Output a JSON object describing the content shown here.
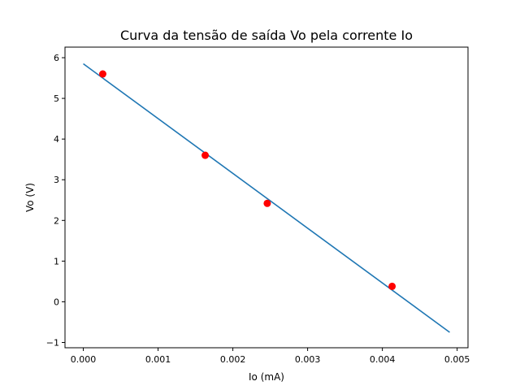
{
  "chart_data": {
    "type": "scatter",
    "title": "Curva da tensão de saída Vo pela corrente Io",
    "xlabel": "Io (mA)",
    "ylabel": "Vo (V)",
    "xlim": [
      -0.000245,
      0.005145
    ],
    "ylim": [
      -1.13,
      6.26
    ],
    "xticks": [
      0.0,
      0.001,
      0.002,
      0.003,
      0.004,
      0.005
    ],
    "xtick_labels": [
      "0.000",
      "0.001",
      "0.002",
      "0.003",
      "0.004",
      "0.005"
    ],
    "yticks": [
      -1,
      0,
      1,
      2,
      3,
      4,
      5,
      6
    ],
    "ytick_labels": [
      "−1",
      "0",
      "1",
      "2",
      "3",
      "4",
      "5",
      "6"
    ],
    "grid": false,
    "series": [
      {
        "kind": "scatter",
        "color": "#ff0000",
        "x": [
          0.00026,
          0.00163,
          0.00246,
          0.00413
        ],
        "y": [
          5.6,
          3.6,
          2.42,
          0.38
        ]
      },
      {
        "kind": "line",
        "color": "#1f77b4",
        "x": [
          0.0,
          0.0049
        ],
        "y": [
          5.85,
          -0.75
        ]
      }
    ]
  }
}
